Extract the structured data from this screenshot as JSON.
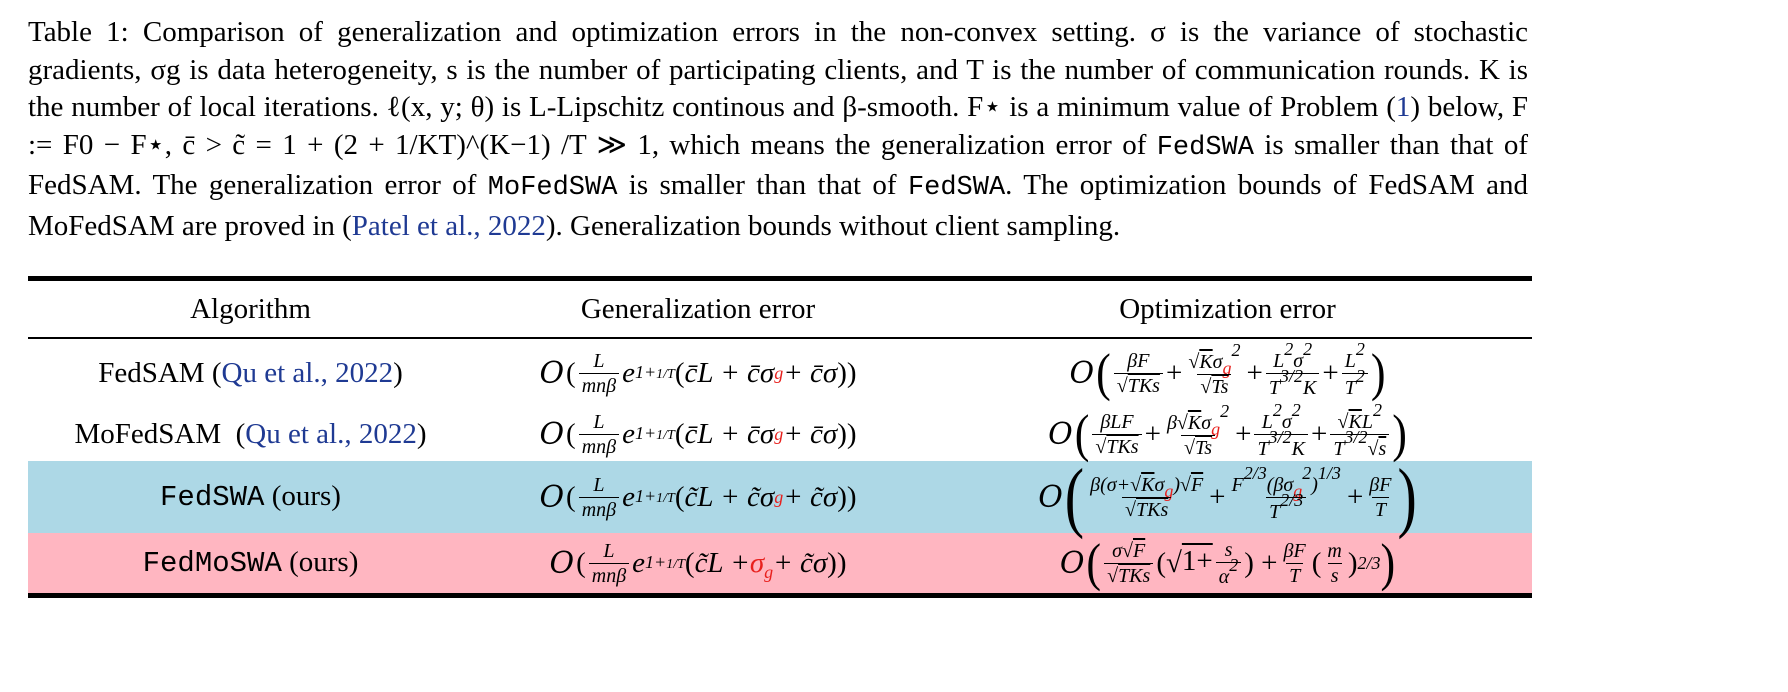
{
  "caption": {
    "label": "Table 1:",
    "seg1": "Comparison of generalization and optimization errors in the non-convex setting.",
    "seg2": "σ is the variance of stochastic gradients, σg is data heterogeneity, s is the number of participating clients, and T is the number of communication rounds. K is the number of local iterations. ℓ(x, y; θ) is L-Lipschitz continous and β-smooth. F⋆ is a minimum value of Problem",
    "problem_ref": "1",
    "seg3": "below, F := F0 − F⋆, c̄ > c̃ = 1 + (2 + 1/KT)^(K−1) /T ≫ 1, which means the generalization error of",
    "fedswa1": "FedSWA",
    "seg4": "is smaller than that of FedSAM. The generalization error of",
    "mofedswa": "MoFedSWA",
    "seg5": "is smaller than that of",
    "fedswa2": "FedSWA",
    "seg6": ". The optimization bounds of FedSAM and MoFedSAM are proved in (",
    "patel_ref": "Patel et al., 2022",
    "seg7": "). Generalization bounds without client sampling."
  },
  "table": {
    "headers": [
      "Algorithm",
      "Generalization error",
      "Optimization error"
    ],
    "rows": [
      {
        "algorithm": "FedSAM",
        "algorithm_mono": false,
        "ref": "Qu et al., 2022",
        "suffix": "",
        "generalization": "O( L/(mnβ) e^(1+1/T) (c̄L + c̄σg + c̄σ) )",
        "optimization": "O( βF/√(TKs) + √K σg²/√(Ts) + L²σ²/(T^(3/2)K) + L²/T² )",
        "highlight": "none"
      },
      {
        "algorithm": "MoFedSAM",
        "algorithm_mono": false,
        "ref": "Qu et al., 2022",
        "suffix": "",
        "generalization": "O( L/(mnβ) e^(1+1/T) (c̄L + c̄σg + c̄σ) )",
        "optimization": "O( βLF/√(TKs) + β√K σg²/√(Ts) + L²σ²/(T^(3/2)K) + √K L²/(T^(3/2)√s) )",
        "highlight": "none"
      },
      {
        "algorithm": "FedSWA",
        "algorithm_mono": true,
        "ref": "",
        "suffix": "(ours)",
        "generalization": "O( L/(mnβ) e^(1+1/T) (c̃L + c̃σg + c̃σ) )",
        "optimization": "O( β(σ+√K σg)√F/√(TKs) + F^(2/3)(βσg²)^(1/3)/T^(2/3) + βF/T )",
        "highlight": "#add8e6"
      },
      {
        "algorithm": "FedMoSWA",
        "algorithm_mono": true,
        "ref": "",
        "suffix": "(ours)",
        "generalization": "O( L/(mnβ) e^(1+1/T) (c̃L + σg + c̃σ) )",
        "optimization": "O( σ√F/√(TKs) (√(1 + s/α²)) + βF/T (m/s)^(2/3) )",
        "highlight": "#ffb6c1"
      }
    ]
  },
  "colors": {
    "ref_link": "#1f3a93",
    "red_term": "#e8211e",
    "blue_row": "#add8e6",
    "pink_row": "#ffb6c1"
  }
}
